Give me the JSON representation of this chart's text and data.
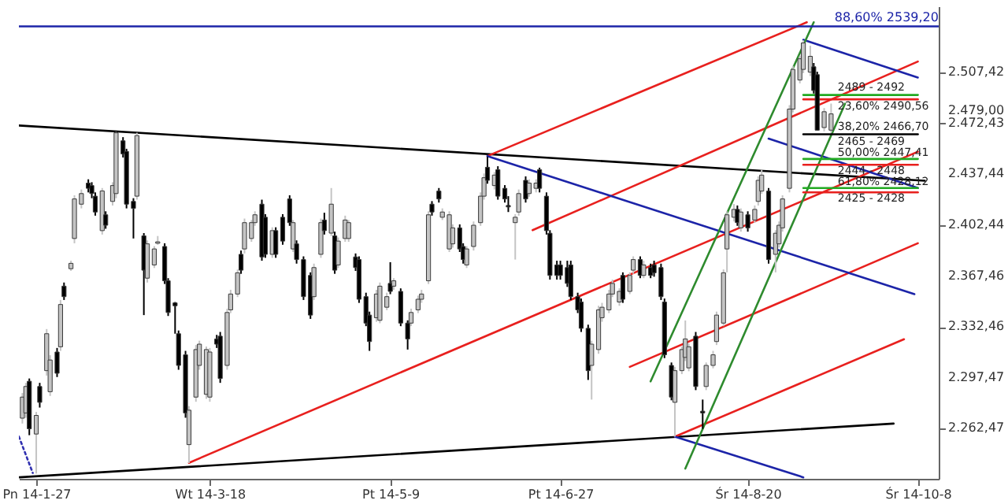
{
  "chart_data": {
    "type": "candlestick",
    "x": [
      "2014-01-23",
      "2014-01-24",
      "2014-01-25",
      "2014-01-27",
      "2014-01-28",
      "2014-01-30",
      "2014-01-31",
      "2014-02-02",
      "2014-02-03",
      "2014-02-04",
      "2014-02-06",
      "2014-02-07",
      "2014-02-09",
      "2014-02-11",
      "2014-02-12",
      "2014-02-13",
      "2014-02-15",
      "2014-02-16",
      "2014-02-18",
      "2014-02-19",
      "2014-02-21",
      "2014-02-22",
      "2014-02-24",
      "2014-02-25",
      "2014-02-27",
      "2014-02-28",
      "2014-03-02",
      "2014-03-03",
      "2014-03-05",
      "2014-03-06",
      "2014-03-08",
      "2014-03-09",
      "2014-03-11",
      "2014-03-12",
      "2014-03-14",
      "2014-03-15",
      "2014-03-17",
      "2014-03-18",
      "2014-03-20",
      "2014-03-21",
      "2014-03-23",
      "2014-03-24",
      "2014-03-26",
      "2014-03-27",
      "2014-03-28",
      "2014-03-30",
      "2014-03-31",
      "2014-04-02",
      "2014-04-03",
      "2014-04-05",
      "2014-04-06",
      "2014-04-08",
      "2014-04-10",
      "2014-04-11",
      "2014-04-12",
      "2014-04-14",
      "2014-04-16",
      "2014-04-17",
      "2014-04-19",
      "2014-04-20",
      "2014-04-22",
      "2014-04-23",
      "2014-04-24",
      "2014-04-26",
      "2014-04-27",
      "2014-04-29",
      "2014-04-30",
      "2014-05-02",
      "2014-05-03",
      "2014-05-05",
      "2014-05-06",
      "2014-05-08",
      "2014-05-09",
      "2014-05-10",
      "2014-05-12",
      "2014-05-14",
      "2014-05-15",
      "2014-05-17",
      "2014-05-18",
      "2014-05-20",
      "2014-05-21",
      "2014-05-23",
      "2014-05-24",
      "2014-05-26",
      "2014-05-27",
      "2014-05-29",
      "2014-05-30",
      "2014-05-31",
      "2014-06-02",
      "2014-06-04",
      "2014-06-05",
      "2014-06-06",
      "2014-06-08",
      "2014-06-09",
      "2014-06-11",
      "2014-06-12",
      "2014-06-14",
      "2014-06-15",
      "2014-06-17",
      "2014-06-18",
      "2014-06-20",
      "2014-06-21",
      "2014-06-23",
      "2014-06-24",
      "2014-06-26",
      "2014-06-27",
      "2014-06-29",
      "2014-06-30",
      "2014-07-02",
      "2014-07-03",
      "2014-07-05",
      "2014-07-06",
      "2014-07-08",
      "2014-07-09",
      "2014-07-11",
      "2014-07-12",
      "2014-07-14",
      "2014-07-15",
      "2014-07-17",
      "2014-07-18",
      "2014-07-20",
      "2014-07-21",
      "2014-07-23",
      "2014-07-24",
      "2014-07-26",
      "2014-07-27",
      "2014-07-29",
      "2014-07-30",
      "2014-08-01",
      "2014-08-02",
      "2014-08-03",
      "2014-08-05",
      "2014-08-07",
      "2014-08-08",
      "2014-08-10",
      "2014-08-11",
      "2014-08-13",
      "2014-08-14",
      "2014-08-16",
      "2014-08-17",
      "2014-08-18",
      "2014-08-20",
      "2014-08-22",
      "2014-08-23",
      "2014-08-24",
      "2014-08-26",
      "2014-08-28",
      "2014-08-29",
      "2014-08-30",
      "2014-09-01",
      "2014-09-02",
      "2014-09-04",
      "2014-09-05",
      "2014-09-07",
      "2014-09-08",
      "2014-09-09",
      "2014-09-11",
      "2014-09-13"
    ],
    "ohlc": [
      [
        2269.7,
        2287,
        2266,
        2284.2
      ],
      [
        2273.3,
        2294,
        2270,
        2291.5
      ],
      [
        2295.1,
        2297,
        2258,
        2262.4
      ],
      [
        2258.8,
        2274,
        2231.6,
        2271.6
      ],
      [
        2291.5,
        2294,
        2277,
        2280.6
      ],
      [
        2302.4,
        2331,
        2299,
        2327.8
      ],
      [
        2287.9,
        2313,
        2285,
        2309.7
      ],
      [
        2315.2,
        2318,
        2298,
        2300.6
      ],
      [
        2318.8,
        2351,
        2316,
        2347.9
      ],
      [
        2360.5,
        2363,
        2351,
        2353.3
      ],
      [
        2372.5,
        2378,
        2371,
        2376.2
      ],
      [
        2393.3,
        2423,
        2390,
        2420.5
      ],
      [
        2416.9,
        2427,
        2414,
        2424.2
      ],
      [
        2431.4,
        2434,
        2425,
        2427.8
      ],
      [
        2429.7,
        2432,
        2421,
        2424.2
      ],
      [
        2422.4,
        2425,
        2409,
        2411.5
      ],
      [
        2398.7,
        2428,
        2396,
        2426.0
      ],
      [
        2409.6,
        2412,
        2400,
        2402.4
      ],
      [
        2418.8,
        2432,
        2416,
        2429.7
      ],
      [
        2424.2,
        2466.6,
        2421,
        2466.0
      ],
      [
        2460.5,
        2463,
        2449,
        2451.5
      ],
      [
        2453.2,
        2455,
        2414,
        2416.9
      ],
      [
        2418.8,
        2421,
        2393.3,
        2414
      ],
      [
        2422.4,
        2466,
        2420,
        2464.1
      ],
      [
        2395.1,
        2397,
        2340.6,
        2371.5
      ],
      [
        2366,
        2392,
        2363,
        2389.6
      ],
      [
        2375.1,
        2388,
        2373,
        2386.1
      ],
      [
        2390,
        2395,
        2389,
        2391
      ],
      [
        2387.8,
        2390,
        2362,
        2364.2
      ],
      [
        2364.2,
        2366,
        2340,
        2342.4
      ],
      [
        2349,
        2349.6,
        2327.8,
        2347
      ],
      [
        2327.8,
        2330,
        2303,
        2306
      ],
      [
        2313.3,
        2316,
        2270,
        2273.3
      ],
      [
        2251.5,
        2278,
        2238.8,
        2275.2
      ],
      [
        2284.2,
        2320,
        2281,
        2316.9
      ],
      [
        2306,
        2323,
        2303,
        2320.6
      ],
      [
        2286.1,
        2319,
        2283,
        2316.9
      ],
      [
        2284.2,
        2318,
        2281,
        2315.2
      ],
      [
        2324.2,
        2327,
        2318,
        2320.6
      ],
      [
        2326.1,
        2329,
        2294,
        2297
      ],
      [
        2306,
        2345,
        2303,
        2342.4
      ],
      [
        2344.2,
        2358,
        2342,
        2355.1
      ],
      [
        2355.1,
        2372,
        2353,
        2369.7
      ],
      [
        2382.4,
        2385,
        2369,
        2371.5
      ],
      [
        2386.1,
        2407,
        2383,
        2404.2
      ],
      [
        2393.3,
        2406,
        2391,
        2404.2
      ],
      [
        2404.2,
        2412,
        2402,
        2409.6
      ],
      [
        2416.9,
        2420,
        2378,
        2380.6
      ],
      [
        2407.9,
        2410,
        2380,
        2382.4
      ],
      [
        2382.4,
        2401,
        2380,
        2398.7
      ],
      [
        2398.7,
        2401,
        2380,
        2382.4
      ],
      [
        2407.9,
        2410,
        2389,
        2391.5
      ],
      [
        2420.5,
        2423,
        2402,
        2404.2
      ],
      [
        2386.1,
        2406,
        2384,
        2404.2
      ],
      [
        2389.6,
        2392,
        2376,
        2378.8
      ],
      [
        2378.8,
        2381,
        2351,
        2353.3
      ],
      [
        2367.9,
        2370,
        2338,
        2340.6
      ],
      [
        2353.3,
        2376,
        2351,
        2373.3
      ],
      [
        2382.4,
        2407,
        2380,
        2404.2
      ],
      [
        2406,
        2411,
        2396,
        2398.7
      ],
      [
        2397,
        2428,
        2395,
        2416.9
      ],
      [
        2395.1,
        2398,
        2369,
        2371.5
      ],
      [
        2375.1,
        2394,
        2373,
        2391.5
      ],
      [
        2393.3,
        2409,
        2391,
        2406
      ],
      [
        2393.3,
        2406,
        2391,
        2404.2
      ],
      [
        2380.6,
        2383,
        2371,
        2373.3
      ],
      [
        2378.8,
        2381,
        2349,
        2351.5
      ],
      [
        2353.3,
        2356,
        2333,
        2335.1
      ],
      [
        2340.6,
        2343,
        2316,
        2322.4
      ],
      [
        2338.8,
        2358,
        2336,
        2355.1
      ],
      [
        2337,
        2363,
        2335,
        2360.5
      ],
      [
        2346,
        2356,
        2344,
        2353.3
      ],
      [
        2362.4,
        2377,
        2355,
        2356.9
      ],
      [
        2360.5,
        2366,
        2358,
        2364.2
      ],
      [
        2356.9,
        2359,
        2333,
        2335.1
      ],
      [
        2335.1,
        2337,
        2316.9,
        2324.2
      ],
      [
        2335.1,
        2345,
        2333,
        2342.4
      ],
      [
        2344.2,
        2354,
        2342,
        2351.5
      ],
      [
        2351.5,
        2358,
        2349,
        2355.1
      ],
      [
        2364.2,
        2412,
        2362,
        2409.6
      ],
      [
        2416.9,
        2419,
        2409,
        2411.5
      ],
      [
        2425.9,
        2428,
        2418,
        2420.5
      ],
      [
        2407.9,
        2414,
        2406,
        2411.5
      ],
      [
        2386.1,
        2412,
        2384,
        2409.6
      ],
      [
        2389.6,
        2403,
        2387,
        2400.6
      ],
      [
        2400.6,
        2403,
        2384,
        2386.1
      ],
      [
        2387.8,
        2390,
        2376,
        2378.8
      ],
      [
        2375.1,
        2388,
        2373,
        2386.1
      ],
      [
        2387.8,
        2405,
        2385,
        2402.4
      ],
      [
        2404.2,
        2425,
        2402,
        2422.4
      ],
      [
        2422.4,
        2438,
        2420,
        2435.1
      ],
      [
        2442.3,
        2449.6,
        2431,
        2433.3
      ],
      [
        2429.7,
        2439,
        2427,
        2436.9
      ],
      [
        2440.6,
        2443,
        2420,
        2422.4
      ],
      [
        2427.8,
        2430,
        2418,
        2420.5
      ],
      [
        2416,
        2422.4,
        2411.5,
        2415
      ],
      [
        2404.2,
        2410,
        2378.8,
        2407.9
      ],
      [
        2411.5,
        2427,
        2409,
        2424.2
      ],
      [
        2433.3,
        2436,
        2418,
        2420.5
      ],
      [
        2424.2,
        2434,
        2422,
        2431.4
      ],
      [
        2427.8,
        2434,
        2425,
        2431.4
      ],
      [
        2440.6,
        2442,
        2425,
        2427.8
      ],
      [
        2422.4,
        2425,
        2396,
        2398.7
      ],
      [
        2396.9,
        2399,
        2365,
        2367.9
      ],
      [
        2375.1,
        2378,
        2365,
        2367.9
      ],
      [
        2375.1,
        2378,
        2365,
        2367.9
      ],
      [
        2373.3,
        2378,
        2360,
        2362.4
      ],
      [
        2375.1,
        2378,
        2351,
        2353.3
      ],
      [
        2353.3,
        2356,
        2342,
        2344.2
      ],
      [
        2349.6,
        2352,
        2329,
        2331.5
      ],
      [
        2331.5,
        2334,
        2296,
        2302.4
      ],
      [
        2306,
        2323,
        2282.5,
        2320.6
      ],
      [
        2316.9,
        2347,
        2314,
        2344.2
      ],
      [
        2338.8,
        2349,
        2336,
        2346
      ],
      [
        2344.2,
        2358,
        2342,
        2355.1
      ],
      [
        2355.1,
        2365,
        2353,
        2362.4
      ],
      [
        2349.6,
        2359,
        2347,
        2356.9
      ],
      [
        2367.9,
        2370,
        2349,
        2351.5
      ],
      [
        2356.9,
        2370,
        2355,
        2367.9
      ],
      [
        2371.5,
        2381,
        2369,
        2378.8
      ],
      [
        2378.8,
        2381,
        2366,
        2367.9
      ],
      [
        2367.9,
        2378,
        2366,
        2375.1
      ],
      [
        2373.3,
        2376,
        2366,
        2367.9
      ],
      [
        2375.1,
        2378,
        2367,
        2369.7
      ],
      [
        2373.3,
        2376,
        2351,
        2353.3
      ],
      [
        2349.6,
        2352,
        2311,
        2313.3
      ],
      [
        2306,
        2308,
        2282,
        2284.2
      ],
      [
        2280.6,
        2305,
        2257,
        2302.4
      ],
      [
        2302.4,
        2319,
        2300,
        2316.9
      ],
      [
        2311.5,
        2336.9,
        2309,
        2324.2
      ],
      [
        2304.3,
        2321,
        2302,
        2318.8
      ],
      [
        2326.1,
        2329,
        2289,
        2291.5
      ],
      [
        2274.5,
        2282.5,
        2262.4,
        2273.3
      ],
      [
        2291.5,
        2308,
        2289,
        2306
      ],
      [
        2306,
        2316,
        2304,
        2313.3
      ],
      [
        2322.4,
        2343,
        2320,
        2340.6
      ],
      [
        2335.1,
        2372,
        2333,
        2369.7
      ],
      [
        2386.1,
        2412,
        2370,
        2409.6
      ],
      [
        2407.9,
        2417,
        2405,
        2413.3
      ],
      [
        2413.3,
        2416,
        2402,
        2404.2
      ],
      [
        2400.6,
        2414,
        2398,
        2411.5
      ],
      [
        2409.6,
        2412,
        2398,
        2400.6
      ],
      [
        2406,
        2416,
        2404,
        2413.3
      ],
      [
        2418.8,
        2436,
        2416,
        2433.3
      ],
      [
        2425.9,
        2440.5,
        2424,
        2436.9
      ],
      [
        2425.9,
        2428,
        2376,
        2378.8
      ],
      [
        2382.4,
        2399,
        2370,
        2396.9
      ],
      [
        2389.6,
        2405,
        2387,
        2402.4
      ],
      [
        2400.6,
        2423,
        2398,
        2420.5
      ],
      [
        2427.8,
        2485,
        2425,
        2482.3
      ],
      [
        2482.3,
        2512,
        2480,
        2509.6
      ],
      [
        2502.3,
        2519,
        2500,
        2516.9
      ],
      [
        2509.6,
        2529.6,
        2507,
        2527.8
      ],
      [
        2507.7,
        2525.9,
        2505,
        2518.6
      ],
      [
        2511.4,
        2514,
        2493,
        2495.1
      ],
      [
        2506,
        2508,
        2467.8,
        2467.8
      ],
      [
        2469.6,
        2483,
        2467,
        2480.5
      ],
      [
        2467.8,
        2486.1,
        2466,
        2479
      ]
    ],
    "colors": [
      "#c4c4c4",
      "#c4c4c4",
      "#000000",
      "#c4c4c4",
      "#000000",
      "#c4c4c4",
      "#c4c4c4",
      "#000000",
      "#c4c4c4",
      "#000000",
      "#c4c4c4",
      "#c4c4c4",
      "#c4c4c4",
      "#000000",
      "#000000",
      "#000000",
      "#c4c4c4",
      "#000000",
      "#c4c4c4",
      "#c4c4c4",
      "#000000",
      "#000000",
      "#000000",
      "#c4c4c4",
      "#000000",
      "#c4c4c4",
      "#c4c4c4",
      "#c4c4c4",
      "#000000",
      "#000000",
      "#000000",
      "#000000",
      "#000000",
      "#c4c4c4",
      "#c4c4c4",
      "#c4c4c4",
      "#c4c4c4",
      "#c4c4c4",
      "#000000",
      "#000000",
      "#c4c4c4",
      "#c4c4c4",
      "#c4c4c4",
      "#000000",
      "#c4c4c4",
      "#c4c4c4",
      "#c4c4c4",
      "#000000",
      "#000000",
      "#c4c4c4",
      "#000000",
      "#000000",
      "#000000",
      "#c4c4c4",
      "#000000",
      "#000000",
      "#000000",
      "#c4c4c4",
      "#c4c4c4",
      "#000000",
      "#c4c4c4",
      "#000000",
      "#c4c4c4",
      "#c4c4c4",
      "#c4c4c4",
      "#000000",
      "#000000",
      "#000000",
      "#000000",
      "#c4c4c4",
      "#c4c4c4",
      "#c4c4c4",
      "#000000",
      "#c4c4c4",
      "#000000",
      "#000000",
      "#c4c4c4",
      "#c4c4c4",
      "#c4c4c4",
      "#c4c4c4",
      "#000000",
      "#000000",
      "#c4c4c4",
      "#c4c4c4",
      "#c4c4c4",
      "#000000",
      "#000000",
      "#c4c4c4",
      "#c4c4c4",
      "#c4c4c4",
      "#c4c4c4",
      "#000000",
      "#c4c4c4",
      "#000000",
      "#000000",
      "#000000",
      "#c4c4c4",
      "#c4c4c4",
      "#000000",
      "#c4c4c4",
      "#c4c4c4",
      "#000000",
      "#000000",
      "#000000",
      "#000000",
      "#000000",
      "#000000",
      "#000000",
      "#000000",
      "#000000",
      "#000000",
      "#c4c4c4",
      "#c4c4c4",
      "#c4c4c4",
      "#c4c4c4",
      "#c4c4c4",
      "#c4c4c4",
      "#000000",
      "#c4c4c4",
      "#c4c4c4",
      "#000000",
      "#c4c4c4",
      "#000000",
      "#000000",
      "#000000",
      "#000000",
      "#000000",
      "#c4c4c4",
      "#c4c4c4",
      "#c4c4c4",
      "#c4c4c4",
      "#000000",
      "#000000",
      "#c4c4c4",
      "#c4c4c4",
      "#c4c4c4",
      "#c4c4c4",
      "#c4c4c4",
      "#c4c4c4",
      "#000000",
      "#c4c4c4",
      "#000000",
      "#c4c4c4",
      "#c4c4c4",
      "#c4c4c4",
      "#000000",
      "#c4c4c4",
      "#c4c4c4",
      "#c4c4c4",
      "#c4c4c4",
      "#c4c4c4",
      "#c4c4c4",
      "#c4c4c4",
      "#c4c4c4",
      "#000000",
      "#000000",
      "#c4c4c4",
      "#c4c4c4"
    ],
    "series": [
      {
        "type": "line",
        "color": "#000000",
        "x": [
          "2014-01-22",
          "2014-10-10"
        ],
        "values": [
          2471,
          2433
        ]
      },
      {
        "type": "line",
        "color": "#000000",
        "x": [
          "2014-01-22",
          "2014-10-01"
        ],
        "values": [
          2229,
          2266
        ]
      },
      {
        "type": "line",
        "color": "#3030b0",
        "line_style": "dotted",
        "x": [
          "2014-01-22",
          "2014-01-26"
        ],
        "values": [
          2257,
          2232
        ]
      },
      {
        "type": "line",
        "color": "#e8201e",
        "x": [
          "2014-06-06",
          "2014-09-06"
        ],
        "values": [
          2450,
          2542
        ]
      },
      {
        "type": "line",
        "color": "#e8201e",
        "x": [
          "2014-06-19",
          "2014-10-08"
        ],
        "values": [
          2399,
          2515
        ]
      },
      {
        "type": "line",
        "color": "#e8201e",
        "x": [
          "2014-03-12",
          "2014-10-08"
        ],
        "values": [
          2239,
          2453
        ]
      },
      {
        "type": "line",
        "color": "#e8201e",
        "x": [
          "2014-07-17",
          "2014-10-08"
        ],
        "values": [
          2305,
          2390
        ]
      },
      {
        "type": "line",
        "color": "#e8201e",
        "x": [
          "2014-07-30",
          "2014-10-04"
        ],
        "values": [
          2257,
          2324
        ]
      },
      {
        "type": "line",
        "color": "#1c24a8",
        "x": [
          "2014-06-06",
          "2014-10-07"
        ],
        "values": [
          2450,
          2355
        ]
      },
      {
        "type": "line",
        "color": "#1c24a8",
        "x": [
          "2014-09-05",
          "2014-10-08"
        ],
        "values": [
          2530,
          2504
        ]
      },
      {
        "type": "line",
        "color": "#1c24a8",
        "x": [
          "2014-08-26",
          "2014-10-08"
        ],
        "values": [
          2462,
          2428
        ]
      },
      {
        "type": "line",
        "color": "#1c24a8",
        "x": [
          "2014-07-30",
          "2014-09-05"
        ],
        "values": [
          2257,
          2229
        ]
      },
      {
        "type": "line",
        "color": "#2e8b2e",
        "x": [
          "2014-07-23",
          "2014-09-08"
        ],
        "values": [
          2295,
          2542
        ]
      },
      {
        "type": "line",
        "color": "#2e8b2e",
        "x": [
          "2014-08-02",
          "2014-09-17"
        ],
        "values": [
          2235,
          2486
        ]
      },
      {
        "type": "line",
        "color": "#22aa22",
        "x": [
          "2014-09-05",
          "2014-10-08"
        ],
        "values": [
          2492,
          2492
        ]
      },
      {
        "type": "line",
        "color": "#e8201e",
        "x": [
          "2014-09-05",
          "2014-10-08"
        ],
        "values": [
          2489,
          2489
        ]
      },
      {
        "type": "line",
        "color": "#000000",
        "x": [
          "2014-09-05",
          "2014-10-08"
        ],
        "values": [
          2465,
          2465
        ]
      },
      {
        "type": "line",
        "color": "#22aa22",
        "x": [
          "2014-09-05",
          "2014-10-08"
        ],
        "values": [
          2448,
          2448
        ]
      },
      {
        "type": "line",
        "color": "#e8201e",
        "x": [
          "2014-09-05",
          "2014-10-08"
        ],
        "values": [
          2444,
          2444
        ]
      },
      {
        "type": "line",
        "color": "#22aa22",
        "x": [
          "2014-09-05",
          "2014-10-08"
        ],
        "values": [
          2428,
          2428
        ]
      },
      {
        "type": "line",
        "color": "#e8201e",
        "x": [
          "2014-09-05",
          "2014-10-08"
        ],
        "values": [
          2425,
          2425
        ]
      }
    ],
    "ref_lines": [
      {
        "axis": "y",
        "value": 2539.2,
        "label": "88,60% 2539,20",
        "color": "#1c24a8"
      }
    ],
    "annotations": [
      {
        "text": "2489 - 2492",
        "x": "2014-09-14",
        "y": 2497
      },
      {
        "text": "23,60% 2490,56",
        "x": "2014-09-14",
        "y": 2484
      },
      {
        "text": "38,20% 2466,70",
        "x": "2014-09-14",
        "y": 2470
      },
      {
        "text": "2465 - 2469",
        "x": "2014-09-14",
        "y": 2460
      },
      {
        "text": "50,00% 2447,41",
        "x": "2014-09-14",
        "y": 2452
      },
      {
        "text": "2444 - 2448",
        "x": "2014-09-14",
        "y": 2440
      },
      {
        "text": "61,80% 2428,12",
        "x": "2014-09-14",
        "y": 2432
      },
      {
        "text": "2425 - 2428",
        "x": "2014-09-14",
        "y": 2421
      }
    ],
    "xlim": [
      "2014-01-22",
      "2014-10-14"
    ],
    "xticks": [
      {
        "value": "2014-01-27",
        "label": "Pn 14-1-27"
      },
      {
        "value": "2014-03-18",
        "label": "Wt 14-3-18"
      },
      {
        "value": "2014-05-09",
        "label": "Pt 14-5-9"
      },
      {
        "value": "2014-06-27",
        "label": "Pt 14-6-27"
      },
      {
        "value": "2014-08-20",
        "label": "Śr 14-8-20"
      },
      {
        "value": "2014-10-08",
        "label": "Śr 14-10-8"
      }
    ],
    "ylim": [
      2228,
      2553
    ],
    "yticks": [
      {
        "value": 2262.47,
        "label": "2.262,47"
      },
      {
        "value": 2297.47,
        "label": "2.297,47"
      },
      {
        "value": 2332.46,
        "label": "2.332,46"
      },
      {
        "value": 2367.46,
        "label": "2.367,46"
      },
      {
        "value": 2402.44,
        "label": "2.402,44"
      },
      {
        "value": 2437.44,
        "label": "2.437,44"
      },
      {
        "value": 2472.43,
        "label": "2.472,43"
      },
      {
        "value": 2479,
        "label": "2.479,00"
      },
      {
        "value": 2507.42,
        "label": "2.507,42"
      }
    ]
  }
}
